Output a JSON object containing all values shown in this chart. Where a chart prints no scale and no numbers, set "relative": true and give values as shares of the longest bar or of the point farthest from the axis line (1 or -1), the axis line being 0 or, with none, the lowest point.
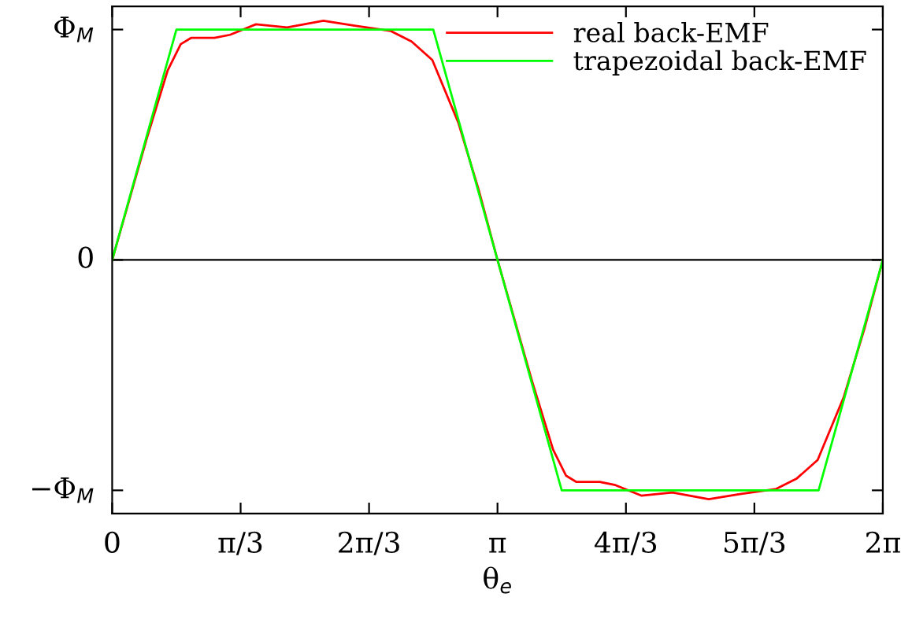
{
  "chart_data": {
    "type": "line",
    "relative": true,
    "xlabel": "θ$_{e}$",
    "xlim": [
      0,
      6.2832
    ],
    "xticks": [
      0,
      {
        "value": 1.0472,
        "label": "π/3"
      },
      {
        "value": 2.0944,
        "label": "2π/3"
      },
      {
        "value": 3.1416,
        "label": "π"
      },
      {
        "value": 4.1888,
        "label": "4π/3"
      },
      {
        "value": 5.236,
        "label": "5π/3"
      },
      {
        "value": 6.2832,
        "label": "2π"
      }
    ],
    "annotations": [
      "Φ$_{M}$",
      "0",
      "−Φ$_{M}$"
    ],
    "ref_lines": [
      {
        "axis": "y",
        "value": 0,
        "color": "#000000"
      }
    ],
    "legend": "top right",
    "grid": false,
    "marker": "none",
    "line_style": "solid",
    "series": [
      {
        "name": "real back-EMF",
        "color": "#ff0000",
        "x": [
          0,
          0.283,
          0.453,
          0.559,
          0.643,
          0.834,
          0.961,
          1.172,
          1.426,
          1.722,
          1.976,
          2.272,
          2.441,
          2.61,
          2.822,
          2.99,
          3.1416,
          3.425,
          3.595,
          3.701,
          3.785,
          3.976,
          4.103,
          4.314,
          4.568,
          4.864,
          5.118,
          5.414,
          5.583,
          5.752,
          5.964,
          6.132,
          6.2832
        ],
        "values": [
          0,
          0.509,
          0.793,
          0.902,
          0.928,
          0.928,
          0.941,
          0.985,
          0.972,
          1,
          0.979,
          0.957,
          0.913,
          0.836,
          0.574,
          0.29,
          0,
          -0.509,
          -0.793,
          -0.902,
          -0.928,
          -0.928,
          -0.941,
          -0.985,
          -0.972,
          -1,
          -0.979,
          -0.957,
          -0.913,
          -0.836,
          -0.574,
          -0.29,
          0
        ]
      },
      {
        "name": "trapezoidal back-EMF",
        "color": "#00ff00",
        "x": [
          0,
          0.5236,
          2.618,
          3.1416,
          3.6652,
          5.7596,
          6.2832
        ],
        "values": [
          0,
          0.963,
          0.963,
          0,
          -0.963,
          -0.963,
          0
        ]
      }
    ]
  }
}
